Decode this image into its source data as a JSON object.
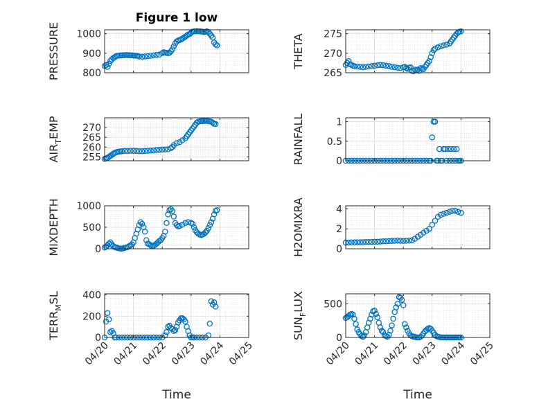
{
  "figure": {
    "title": "Figure 1 low"
  },
  "chart_data": [
    {
      "type": "scatter",
      "id": "pressure",
      "title": "Figure 1 low",
      "ylabel": "PRESSURE",
      "ylabel_sub": "",
      "ylim": [
        800,
        1020
      ],
      "yticks": [
        800,
        900,
        1000
      ],
      "ytick_labels": [
        "800",
        "900",
        "1000"
      ],
      "xlim": [
        0,
        5
      ],
      "xticks": [
        0,
        1,
        2,
        3,
        4,
        5
      ],
      "xtick_labels": [],
      "xlabel": "",
      "grid": true,
      "color": "#0072BD",
      "x": [
        0.0,
        0.05,
        0.1,
        0.15,
        0.2,
        0.25,
        0.3,
        0.35,
        0.4,
        0.45,
        0.5,
        0.55,
        0.6,
        0.65,
        0.7,
        0.75,
        0.8,
        0.85,
        0.9,
        0.95,
        1.0,
        1.05,
        1.1,
        1.15,
        1.2,
        1.3,
        1.4,
        1.5,
        1.6,
        1.7,
        1.8,
        1.9,
        2.0,
        2.05,
        2.1,
        2.15,
        2.2,
        2.25,
        2.3,
        2.35,
        2.4,
        2.45,
        2.5,
        2.55,
        2.6,
        2.65,
        2.7,
        2.75,
        2.8,
        2.85,
        2.9,
        2.95,
        3.0,
        3.05,
        3.1,
        3.15,
        3.2,
        3.25,
        3.3,
        3.35,
        3.4,
        3.45,
        3.5,
        3.55,
        3.6,
        3.65,
        3.7,
        3.75,
        3.8,
        3.85,
        3.9
      ],
      "y": [
        835,
        840,
        830,
        845,
        860,
        868,
        875,
        880,
        885,
        887,
        888,
        889,
        889,
        890,
        890,
        891,
        890,
        890,
        889,
        889,
        888,
        888,
        887,
        886,
        883,
        882,
        883,
        885,
        887,
        889,
        891,
        893,
        900,
        905,
        903,
        902,
        900,
        902,
        910,
        920,
        935,
        950,
        960,
        965,
        968,
        970,
        975,
        980,
        985,
        990,
        995,
        998,
        1005,
        1010,
        1012,
        1012,
        1013,
        1012,
        1012,
        1011,
        1010,
        1008,
        1010,
        1012,
        1008,
        1000,
        990,
        980,
        955,
        945,
        940
      ]
    },
    {
      "type": "scatter",
      "id": "theta",
      "ylabel": "THETA",
      "ylabel_sub": "",
      "ylim": [
        265,
        276
      ],
      "yticks": [
        265,
        270,
        275
      ],
      "ytick_labels": [
        "265",
        "270",
        "275"
      ],
      "xlim": [
        0,
        5
      ],
      "xticks": [
        0,
        1,
        2,
        3,
        4,
        5
      ],
      "xtick_labels": [],
      "xlabel": "",
      "grid": true,
      "color": "#0072BD",
      "x": [
        0.0,
        0.05,
        0.1,
        0.15,
        0.2,
        0.25,
        0.3,
        0.4,
        0.5,
        0.6,
        0.7,
        0.8,
        0.9,
        1.0,
        1.1,
        1.2,
        1.3,
        1.4,
        1.5,
        1.6,
        1.7,
        1.8,
        1.9,
        2.0,
        2.05,
        2.1,
        2.15,
        2.2,
        2.25,
        2.3,
        2.35,
        2.4,
        2.45,
        2.5,
        2.55,
        2.6,
        2.65,
        2.7,
        2.75,
        2.8,
        2.85,
        2.9,
        2.95,
        3.0,
        3.05,
        3.1,
        3.2,
        3.3,
        3.4,
        3.5,
        3.6,
        3.65,
        3.7,
        3.75,
        3.8,
        3.85,
        3.9,
        3.95,
        4.0
      ],
      "y": [
        267.0,
        267.5,
        268.0,
        267.2,
        267.0,
        266.8,
        266.7,
        266.6,
        266.5,
        266.4,
        266.5,
        266.6,
        266.7,
        266.8,
        266.9,
        267.0,
        266.9,
        266.8,
        266.7,
        266.5,
        266.4,
        266.3,
        266.2,
        266.4,
        266.5,
        266.2,
        266.0,
        266.3,
        266.4,
        265.5,
        265.4,
        265.8,
        265.6,
        265.8,
        265.5,
        266.2,
        266.0,
        265.9,
        266.5,
        267.0,
        267.5,
        268.0,
        269.0,
        270.0,
        270.8,
        271.2,
        271.5,
        271.8,
        272.0,
        272.2,
        272.5,
        273.0,
        273.5,
        274.0,
        274.5,
        275.0,
        275.3,
        275.5,
        275.6
      ]
    },
    {
      "type": "scatter",
      "id": "air-temp",
      "ylabel": "AIR",
      "ylabel_sub": "T",
      "ylabel_tail": "EMP",
      "ylim": [
        253,
        275
      ],
      "yticks": [
        255,
        260,
        265,
        270
      ],
      "ytick_labels": [
        "255",
        "260",
        "265",
        "270"
      ],
      "xlim": [
        0,
        5
      ],
      "xticks": [
        0,
        1,
        2,
        3,
        4,
        5
      ],
      "xtick_labels": [],
      "xlabel": "",
      "grid": true,
      "color": "#0072BD",
      "x": [
        0.0,
        0.05,
        0.1,
        0.15,
        0.2,
        0.25,
        0.3,
        0.35,
        0.4,
        0.45,
        0.5,
        0.55,
        0.6,
        0.7,
        0.8,
        0.9,
        1.0,
        1.1,
        1.2,
        1.3,
        1.4,
        1.5,
        1.6,
        1.7,
        1.8,
        1.9,
        2.0,
        2.1,
        2.2,
        2.3,
        2.35,
        2.4,
        2.5,
        2.6,
        2.7,
        2.8,
        2.85,
        2.9,
        2.95,
        3.0,
        3.05,
        3.1,
        3.15,
        3.2,
        3.25,
        3.3,
        3.35,
        3.4,
        3.45,
        3.5,
        3.55,
        3.6,
        3.65,
        3.7,
        3.75,
        3.8,
        3.85
      ],
      "y": [
        254.0,
        254.2,
        254.5,
        255.0,
        255.5,
        256.0,
        256.5,
        257.0,
        257.3,
        257.5,
        257.7,
        257.8,
        257.9,
        258.0,
        258.0,
        258.1,
        258.1,
        258.0,
        257.9,
        257.9,
        258.0,
        258.1,
        258.2,
        258.3,
        258.5,
        258.6,
        258.7,
        258.8,
        258.9,
        259.5,
        260.0,
        261.0,
        262.0,
        262.5,
        263.5,
        264.5,
        265.5,
        266.5,
        267.5,
        268.5,
        269.5,
        270.5,
        271.5,
        272.5,
        273.0,
        273.2,
        273.3,
        273.3,
        273.4,
        273.4,
        273.4,
        273.3,
        273.2,
        273.0,
        272.5,
        272.0,
        271.8
      ]
    },
    {
      "type": "scatter",
      "id": "rainfall",
      "ylabel": "RAINFALL",
      "ylabel_sub": "",
      "ylim": [
        0,
        1.1
      ],
      "yticks": [
        0,
        0.5,
        1
      ],
      "ytick_labels": [
        "0",
        "0.5",
        "1"
      ],
      "xlim": [
        0,
        5
      ],
      "xticks": [
        0,
        1,
        2,
        3,
        4,
        5
      ],
      "xtick_labels": [],
      "xlabel": "",
      "grid": true,
      "color": "#0072BD",
      "x": [
        0.0,
        0.1,
        0.2,
        0.3,
        0.4,
        0.5,
        0.6,
        0.7,
        0.8,
        0.9,
        1.0,
        1.1,
        1.2,
        1.3,
        1.4,
        1.5,
        1.6,
        1.7,
        1.8,
        1.9,
        2.0,
        2.1,
        2.2,
        2.3,
        2.4,
        2.5,
        2.6,
        2.7,
        2.8,
        2.9,
        2.95,
        3.0,
        3.05,
        3.1,
        3.15,
        3.2,
        3.25,
        3.3,
        3.35,
        3.4,
        3.45,
        3.5,
        3.55,
        3.6,
        3.65,
        3.7,
        3.75,
        3.8,
        3.85,
        3.9,
        3.95,
        4.0
      ],
      "y": [
        0,
        0,
        0,
        0,
        0,
        0,
        0,
        0,
        0,
        0,
        0,
        0,
        0,
        0,
        0,
        0,
        0,
        0,
        0,
        0,
        0,
        0,
        0,
        0,
        0,
        0,
        0,
        0,
        0,
        0,
        0,
        0.6,
        1.0,
        1.0,
        0,
        0,
        0.3,
        0,
        0,
        0.3,
        0.3,
        0,
        0.3,
        0,
        0.3,
        0,
        0.3,
        0,
        0.3,
        0,
        0,
        0
      ]
    },
    {
      "type": "scatter",
      "id": "mixdepth",
      "ylabel": "MIXDEPTH",
      "ylabel_sub": "",
      "ylim": [
        0,
        1000
      ],
      "yticks": [
        0,
        500,
        1000
      ],
      "ytick_labels": [
        "0",
        "500",
        "1000"
      ],
      "xlim": [
        0,
        5
      ],
      "xticks": [
        0,
        1,
        2,
        3,
        4,
        5
      ],
      "xtick_labels": [],
      "xlabel": "",
      "grid": true,
      "color": "#0072BD",
      "x": [
        0.0,
        0.05,
        0.1,
        0.15,
        0.2,
        0.25,
        0.3,
        0.35,
        0.4,
        0.45,
        0.5,
        0.55,
        0.6,
        0.65,
        0.7,
        0.75,
        0.8,
        0.85,
        0.9,
        0.95,
        1.0,
        1.05,
        1.1,
        1.15,
        1.2,
        1.25,
        1.3,
        1.35,
        1.4,
        1.45,
        1.5,
        1.55,
        1.6,
        1.65,
        1.7,
        1.75,
        1.8,
        1.85,
        1.9,
        1.95,
        2.0,
        2.05,
        2.1,
        2.15,
        2.2,
        2.25,
        2.3,
        2.35,
        2.4,
        2.45,
        2.5,
        2.55,
        2.6,
        2.7,
        2.8,
        2.9,
        3.0,
        3.05,
        3.1,
        3.15,
        3.2,
        3.25,
        3.3,
        3.35,
        3.4,
        3.45,
        3.5,
        3.55,
        3.6,
        3.65,
        3.7,
        3.75,
        3.8,
        3.85,
        3.9
      ],
      "y": [
        30,
        50,
        80,
        120,
        150,
        100,
        60,
        40,
        30,
        20,
        10,
        5,
        5,
        10,
        20,
        30,
        40,
        60,
        80,
        100,
        150,
        250,
        350,
        450,
        550,
        620,
        580,
        500,
        400,
        200,
        120,
        100,
        80,
        60,
        70,
        90,
        120,
        150,
        180,
        200,
        250,
        300,
        400,
        600,
        800,
        900,
        920,
        880,
        750,
        600,
        550,
        520,
        530,
        560,
        600,
        620,
        600,
        580,
        500,
        430,
        380,
        350,
        330,
        320,
        330,
        350,
        380,
        420,
        480,
        550,
        620,
        700,
        800,
        880,
        900
      ]
    },
    {
      "type": "scatter",
      "id": "h2omixra",
      "ylabel": "H2OMIXRA",
      "ylabel_sub": "",
      "ylim": [
        0,
        4.3
      ],
      "yticks": [
        0,
        2,
        4
      ],
      "ytick_labels": [
        "0",
        "2",
        "4"
      ],
      "xlim": [
        0,
        5
      ],
      "xticks": [
        0,
        1,
        2,
        3,
        4,
        5
      ],
      "xtick_labels": [],
      "xlabel": "",
      "grid": true,
      "color": "#0072BD",
      "x": [
        0.0,
        0.1,
        0.2,
        0.3,
        0.4,
        0.5,
        0.6,
        0.7,
        0.8,
        0.9,
        1.0,
        1.1,
        1.2,
        1.3,
        1.4,
        1.5,
        1.6,
        1.7,
        1.8,
        1.9,
        2.0,
        2.1,
        2.2,
        2.3,
        2.4,
        2.5,
        2.6,
        2.7,
        2.8,
        2.9,
        3.0,
        3.1,
        3.2,
        3.3,
        3.4,
        3.5,
        3.6,
        3.7,
        3.8,
        3.9,
        4.0
      ],
      "y": [
        0.6,
        0.62,
        0.63,
        0.64,
        0.65,
        0.65,
        0.66,
        0.67,
        0.68,
        0.69,
        0.7,
        0.7,
        0.72,
        0.74,
        0.75,
        0.76,
        0.78,
        0.8,
        0.82,
        0.8,
        0.78,
        0.8,
        0.82,
        0.85,
        1.0,
        1.2,
        1.4,
        1.6,
        1.8,
        2.0,
        2.4,
        2.8,
        3.2,
        3.4,
        3.5,
        3.6,
        3.7,
        3.8,
        3.8,
        3.7,
        3.6
      ]
    },
    {
      "type": "scatter",
      "id": "terr-msl",
      "ylabel": "TERR",
      "ylabel_sub": "M",
      "ylabel_tail": "SL",
      "ylim": [
        0,
        410
      ],
      "yticks": [
        0,
        200,
        400
      ],
      "ytick_labels": [
        "0",
        "200",
        "400"
      ],
      "xlim": [
        0,
        5
      ],
      "xticks": [
        0,
        1,
        2,
        3,
        4,
        5
      ],
      "xtick_labels": [
        "04/20",
        "04/21",
        "04/22",
        "04/23",
        "04/24",
        "04/25"
      ],
      "xlabel": "Time",
      "grid": true,
      "color": "#0072BD",
      "x": [
        0.0,
        0.05,
        0.1,
        0.15,
        0.2,
        0.25,
        0.3,
        0.35,
        0.4,
        0.5,
        0.6,
        0.7,
        0.8,
        0.9,
        1.0,
        1.1,
        1.2,
        1.3,
        1.4,
        1.5,
        1.6,
        1.7,
        1.8,
        1.9,
        2.0,
        2.1,
        2.15,
        2.2,
        2.25,
        2.3,
        2.35,
        2.4,
        2.45,
        2.5,
        2.55,
        2.6,
        2.65,
        2.7,
        2.75,
        2.8,
        2.85,
        2.9,
        2.95,
        3.0,
        3.05,
        3.1,
        3.2,
        3.3,
        3.4,
        3.5,
        3.6,
        3.65,
        3.7,
        3.75,
        3.8,
        3.85
      ],
      "y": [
        0,
        150,
        230,
        170,
        50,
        60,
        40,
        0,
        0,
        0,
        0,
        0,
        0,
        0,
        0,
        0,
        0,
        0,
        0,
        0,
        0,
        0,
        0,
        0,
        0,
        20,
        50,
        100,
        110,
        90,
        80,
        60,
        70,
        100,
        140,
        160,
        180,
        180,
        170,
        150,
        100,
        60,
        20,
        0,
        0,
        0,
        0,
        0,
        0,
        0,
        20,
        130,
        340,
        310,
        330,
        290
      ]
    },
    {
      "type": "scatter",
      "id": "sun-flux",
      "ylabel": "SUN",
      "ylabel_sub": "F",
      "ylabel_tail": "LUX",
      "ylim": [
        0,
        650
      ],
      "yticks": [
        0,
        500
      ],
      "ytick_labels": [
        "0",
        "500"
      ],
      "xlim": [
        0,
        5
      ],
      "xticks": [
        0,
        1,
        2,
        3,
        4,
        5
      ],
      "xtick_labels": [
        "04/20",
        "04/21",
        "04/22",
        "04/23",
        "04/24",
        "04/25"
      ],
      "xlabel": "Time",
      "grid": true,
      "color": "#0072BD",
      "x": [
        0.0,
        0.05,
        0.1,
        0.15,
        0.2,
        0.25,
        0.3,
        0.35,
        0.4,
        0.45,
        0.5,
        0.55,
        0.6,
        0.65,
        0.7,
        0.75,
        0.8,
        0.85,
        0.9,
        0.95,
        1.0,
        1.05,
        1.1,
        1.15,
        1.2,
        1.25,
        1.3,
        1.35,
        1.4,
        1.45,
        1.5,
        1.55,
        1.6,
        1.65,
        1.7,
        1.75,
        1.8,
        1.85,
        1.9,
        1.95,
        2.0,
        2.05,
        2.1,
        2.15,
        2.2,
        2.25,
        2.3,
        2.35,
        2.4,
        2.45,
        2.5,
        2.55,
        2.6,
        2.65,
        2.7,
        2.75,
        2.8,
        2.85,
        2.9,
        2.95,
        3.0,
        3.05,
        3.1,
        3.15,
        3.2,
        3.25,
        3.3,
        3.35,
        3.4,
        3.45,
        3.5,
        3.55,
        3.6,
        3.65,
        3.7,
        3.75,
        3.8,
        3.85,
        3.9,
        3.95,
        4.0
      ],
      "y": [
        290,
        300,
        320,
        340,
        350,
        340,
        280,
        200,
        120,
        80,
        50,
        20,
        10,
        30,
        80,
        150,
        220,
        280,
        340,
        390,
        400,
        350,
        300,
        220,
        150,
        100,
        80,
        30,
        20,
        10,
        40,
        100,
        180,
        280,
        380,
        450,
        500,
        600,
        590,
        560,
        480,
        200,
        150,
        100,
        60,
        30,
        20,
        10,
        10,
        0,
        0,
        0,
        10,
        30,
        60,
        90,
        110,
        130,
        140,
        130,
        100,
        70,
        40,
        20,
        10,
        5,
        0,
        0,
        0,
        0,
        0,
        0,
        0,
        0,
        0,
        0,
        0,
        0,
        0,
        0,
        0
      ]
    }
  ]
}
